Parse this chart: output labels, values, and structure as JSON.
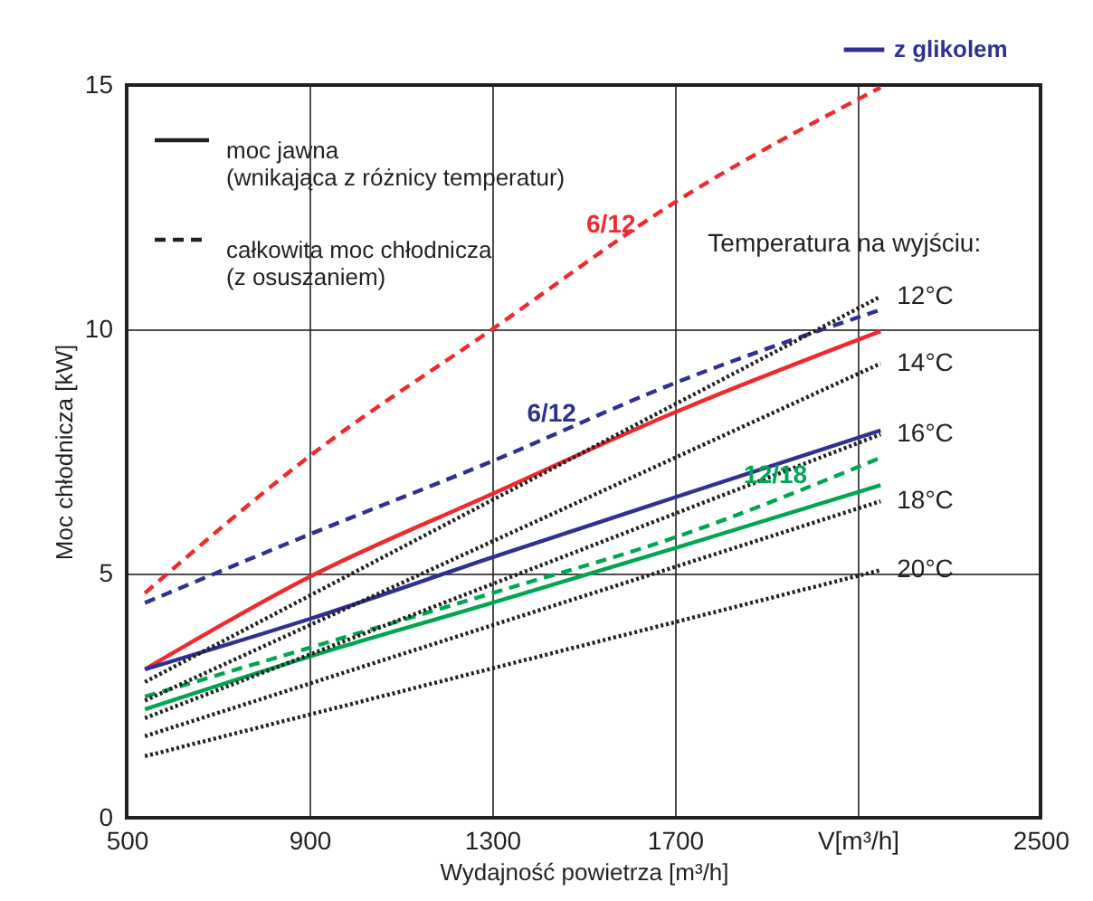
{
  "chart_data": {
    "type": "line",
    "xlabel": "Wydajność powietrza [m³/h]",
    "ylabel": "Moc chłodnicza [kW]",
    "xlim": [
      500,
      2500
    ],
    "ylim": [
      0,
      15
    ],
    "xticks": [
      500,
      900,
      1300,
      1700,
      {
        "value": 2100,
        "label": "V[m³/h]"
      },
      2500
    ],
    "yticks": [
      0,
      5,
      10,
      15
    ],
    "grid": true,
    "legend": "top right",
    "series": [
      {
        "color": "#ee2a2e",
        "line_style": "dashed",
        "x": [
          540,
          900,
          1300,
          1700,
          2150
        ],
        "values": [
          4.6,
          7.4,
          10.0,
          12.6,
          14.95
        ]
      },
      {
        "color": "#ee2a2e",
        "line_style": "solid",
        "x": [
          540,
          900,
          1300,
          1700,
          2150
        ],
        "values": [
          3.04,
          4.93,
          6.63,
          8.3,
          9.96
        ]
      },
      {
        "color": "#2e3192",
        "line_style": "dashed",
        "x": [
          540,
          900,
          1300,
          1700,
          2150
        ],
        "values": [
          4.4,
          5.8,
          7.3,
          8.9,
          10.4
        ]
      },
      {
        "name": "z glikolem",
        "color": "#2e3192",
        "line_style": "solid",
        "x": [
          540,
          900,
          1300,
          1700,
          2150
        ],
        "values": [
          3.04,
          4.07,
          5.33,
          6.56,
          7.93
        ]
      },
      {
        "color": "#00a651",
        "line_style": "dashed",
        "x": [
          540,
          900,
          1300,
          1700,
          2150
        ],
        "values": [
          2.48,
          3.48,
          4.6,
          5.74,
          7.37
        ]
      },
      {
        "color": "#00a651",
        "line_style": "solid",
        "x": [
          540,
          900,
          1300,
          1700,
          2150
        ],
        "values": [
          2.22,
          3.3,
          4.4,
          5.52,
          6.81
        ]
      },
      {
        "name": "12°C",
        "color": "#231f20",
        "line_style": "dotted",
        "x": [
          540,
          2150
        ],
        "values": [
          2.78,
          10.67
        ]
      },
      {
        "name": "14°C",
        "color": "#231f20",
        "line_style": "dotted",
        "x": [
          540,
          2150
        ],
        "values": [
          2.4,
          9.3
        ]
      },
      {
        "name": "16°C",
        "color": "#231f20",
        "line_style": "dotted",
        "x": [
          540,
          2150
        ],
        "values": [
          2.04,
          7.85
        ]
      },
      {
        "name": "18°C",
        "color": "#231f20",
        "line_style": "dotted",
        "x": [
          540,
          2150
        ],
        "values": [
          1.67,
          6.48
        ]
      },
      {
        "name": "20°C",
        "color": "#231f20",
        "line_style": "dotted",
        "x": [
          540,
          2150
        ],
        "values": [
          1.26,
          5.07
        ]
      }
    ],
    "annotations": [
      "moc jawna\n(wnikająca z różnicy temperatur)",
      "całkowita moc chłodnicza\n(z osuszaniem)",
      "Temperatura na wyjściu:",
      {
        "text": "6/12",
        "x": 1560,
        "y": 11.69
      },
      {
        "text": "6/12",
        "x": 1430,
        "y": 7.82
      },
      {
        "text": "12/18",
        "x": 1920,
        "y": 6.56
      }
    ]
  }
}
